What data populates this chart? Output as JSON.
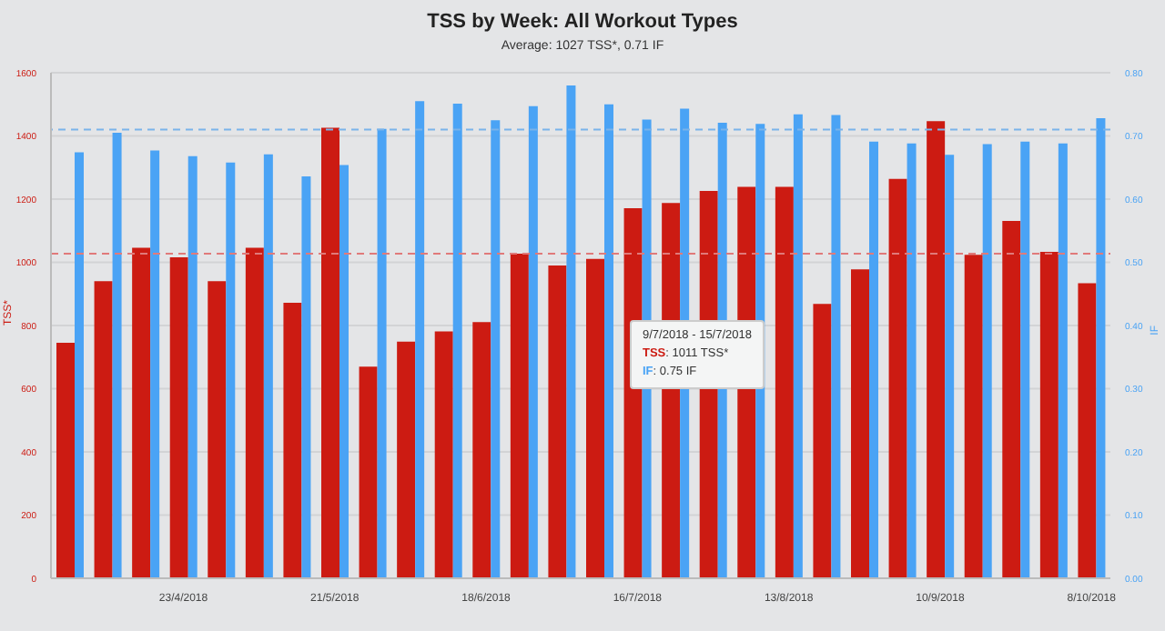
{
  "chart_data": {
    "type": "bar",
    "title": "TSS by Week: All Workout Types",
    "subtitle": "Average: 1027 TSS*, 0.71 IF",
    "ylabel": "TSS*",
    "y2label": "IF",
    "categories": [
      null,
      null,
      null,
      "23/4/2018",
      null,
      null,
      null,
      "21/5/2018",
      null,
      null,
      null,
      "18/6/2018",
      null,
      null,
      null,
      "16/7/2018",
      null,
      null,
      null,
      "13/8/2018",
      null,
      null,
      null,
      "10/9/2018",
      null,
      null,
      null,
      "8/10/2018"
    ],
    "series": [
      {
        "name": "TSS",
        "color": "#cc1b12",
        "values": [
          745,
          940,
          1046,
          1016,
          940,
          1046,
          872,
          1426,
          670,
          749,
          781,
          811,
          1027,
          990,
          1011,
          1171,
          1188,
          1226,
          1239,
          1239,
          868,
          978,
          1264,
          1447,
          1024,
          1131,
          1033,
          934
        ]
      },
      {
        "name": "IF",
        "color": "#4aa3f5",
        "axis": "y2",
        "values": [
          0.674,
          0.705,
          0.677,
          0.668,
          0.658,
          0.671,
          0.636,
          0.654,
          0.711,
          0.755,
          0.751,
          0.725,
          0.747,
          0.78,
          0.75,
          0.726,
          0.743,
          0.721,
          0.719,
          0.734,
          0.733,
          0.691,
          0.688,
          0.67,
          0.687,
          0.691,
          0.688,
          0.728
        ]
      }
    ],
    "ylim": [
      0,
      1600
    ],
    "yticks": [
      0,
      200,
      400,
      600,
      800,
      1000,
      1200,
      1400,
      1600
    ],
    "y2lim": [
      0,
      0.8
    ],
    "y2ticks": [
      {
        "value": 0,
        "label": "0.00"
      },
      {
        "value": 0.1,
        "label": "0.10"
      },
      {
        "value": 0.2,
        "label": "0.20"
      },
      {
        "value": 0.3,
        "label": "0.30"
      },
      {
        "value": 0.4,
        "label": "0.40"
      },
      {
        "value": 0.5,
        "label": "0.50"
      },
      {
        "value": 0.6,
        "label": "0.60"
      },
      {
        "value": 0.7,
        "label": "0.70"
      },
      {
        "value": 0.8,
        "label": "0.80"
      }
    ],
    "ref_lines": [
      {
        "axis": "y",
        "value": 1027,
        "color": "#e07a7a",
        "line_style": "dashed"
      },
      {
        "axis": "y2",
        "value": 0.71,
        "color": "#7ab3ea",
        "line_style": "dashed"
      }
    ],
    "annotations": [
      "9/7/2018 - 15/7/2018",
      ": 1011 TSS*",
      ": 0.75 IF"
    ],
    "grid": "y",
    "legend": false
  }
}
